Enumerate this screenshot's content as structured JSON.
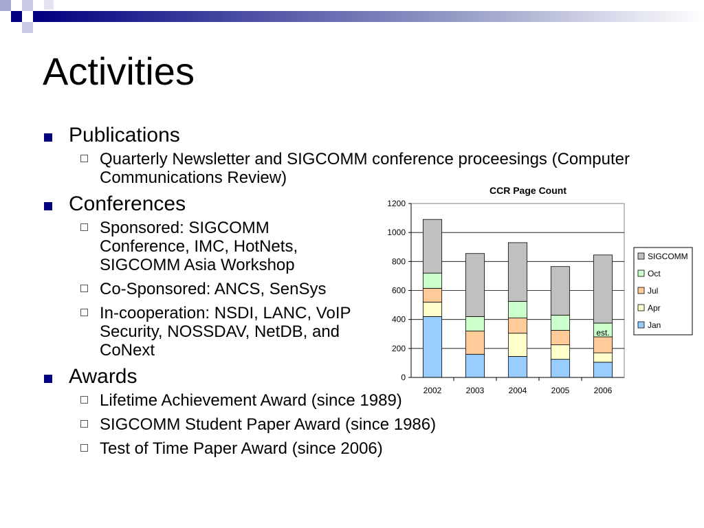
{
  "slide": {
    "title": "Activities"
  },
  "bullets": [
    {
      "text": "Publications",
      "children": [
        "Quarterly Newsletter and SIGCOMM conference proceesings (Computer Communications Review)"
      ]
    },
    {
      "text": "Conferences",
      "children": [
        "Sponsored: SIGCOMM Conference, IMC, HotNets, SIGCOMM Asia Workshop",
        "Co-Sponsored: ANCS, SenSys",
        "In-cooperation: NSDI, LANC, VoIP Security, NOSSDAV, NetDB, and CoNext"
      ]
    },
    {
      "text": "Awards",
      "children": [
        "Lifetime Achievement Award (since 1989)",
        "SIGCOMM Student Paper Award (since 1986)",
        "Test of Time Paper Award (since 2006)"
      ]
    }
  ],
  "colors": {
    "accent": "#000080"
  },
  "chart_data": {
    "type": "bar",
    "stacked": true,
    "title": "CCR Page Count",
    "categories": [
      "2002",
      "2003",
      "2004",
      "2005",
      "2006"
    ],
    "series": [
      {
        "name": "Jan",
        "color": "#99ccff",
        "values": [
          420,
          160,
          145,
          125,
          105
        ]
      },
      {
        "name": "Apr",
        "color": "#ffffcc",
        "values": [
          100,
          0,
          160,
          100,
          65
        ]
      },
      {
        "name": "Jul",
        "color": "#ffcc99",
        "values": [
          95,
          160,
          105,
          100,
          110
        ]
      },
      {
        "name": "Oct",
        "color": "#ccffcc",
        "values": [
          105,
          100,
          115,
          105,
          95
        ]
      },
      {
        "name": "SIGCOMM",
        "color": "#c0c0c0",
        "values": [
          370,
          435,
          405,
          335,
          470
        ]
      }
    ],
    "ylim": [
      0,
      1200
    ],
    "yticks": [
      0,
      200,
      400,
      600,
      800,
      1000,
      1200
    ],
    "grid": true,
    "legend": "right",
    "annotation": {
      "text": "est.",
      "category": "2006"
    }
  }
}
